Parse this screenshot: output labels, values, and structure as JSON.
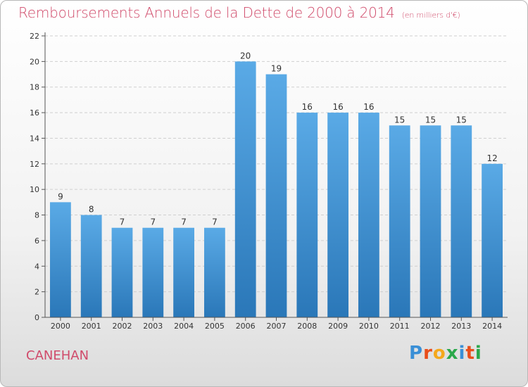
{
  "chart_data": {
    "type": "bar",
    "title": "Remboursements Annuels de la Dette de 2000 à 2014",
    "unit_note": "(en milliers d'€)",
    "categories": [
      "2000",
      "2001",
      "2002",
      "2003",
      "2004",
      "2005",
      "2006",
      "2007",
      "2008",
      "2009",
      "2010",
      "2011",
      "2012",
      "2013",
      "2014"
    ],
    "values": [
      9,
      8,
      7,
      7,
      7,
      7,
      20,
      19,
      16,
      16,
      16,
      15,
      15,
      15,
      12
    ],
    "ylim": [
      0,
      22
    ],
    "yticks": [
      0,
      2,
      4,
      6,
      8,
      10,
      12,
      14,
      16,
      18,
      20,
      22
    ],
    "grid": true,
    "bar_color_top": "#5aaae6",
    "bar_color_bottom": "#2a77b8"
  },
  "footer": {
    "commune": "CANEHAN",
    "logo_letters": [
      {
        "ch": "P",
        "color": "#3a8fd6"
      },
      {
        "ch": "r",
        "color": "#e94e1b"
      },
      {
        "ch": "o",
        "color": "#f4a81c"
      },
      {
        "ch": "x",
        "color": "#2aa84a"
      },
      {
        "ch": "i",
        "color": "#3a8fd6"
      },
      {
        "ch": "t",
        "color": "#e94e1b"
      },
      {
        "ch": "i",
        "color": "#2aa84a"
      }
    ]
  }
}
